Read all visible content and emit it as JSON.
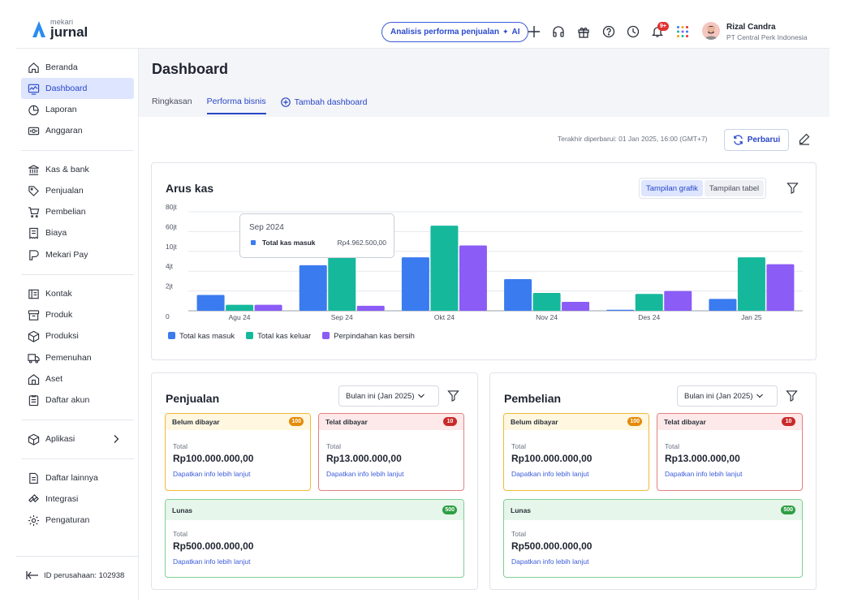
{
  "app": {
    "logo_small": "mekari",
    "logo_big": "jurnal",
    "ai_button": "Analisis performa penjualan",
    "ai_tag": "AI",
    "notif_count": "9+",
    "user_name": "Rizal Candra",
    "user_company": "PT Central Perk Indonesia"
  },
  "sidebar": {
    "items": [
      {
        "label": "Beranda",
        "icon": "home-icon"
      },
      {
        "label": "Dashboard",
        "icon": "dashboard-icon"
      },
      {
        "label": "Laporan",
        "icon": "report-icon"
      },
      {
        "label": "Anggaran",
        "icon": "budget-icon"
      },
      {
        "label": "Kas & bank",
        "icon": "bank-icon"
      },
      {
        "label": "Penjualan",
        "icon": "tag-icon"
      },
      {
        "label": "Pembelian",
        "icon": "cart-icon"
      },
      {
        "label": "Biaya",
        "icon": "receipt-icon"
      },
      {
        "label": "Mekari Pay",
        "icon": "pay-icon"
      },
      {
        "label": "Kontak",
        "icon": "contact-icon"
      },
      {
        "label": "Produk",
        "icon": "product-icon"
      },
      {
        "label": "Produksi",
        "icon": "box-icon"
      },
      {
        "label": "Pemenuhan",
        "icon": "truck-icon"
      },
      {
        "label": "Aset",
        "icon": "asset-icon"
      },
      {
        "label": "Daftar akun",
        "icon": "account-icon"
      },
      {
        "label": "Aplikasi",
        "icon": "cube-icon"
      },
      {
        "label": "Daftar lainnya",
        "icon": "list-icon"
      },
      {
        "label": "Integrasi",
        "icon": "integration-icon"
      },
      {
        "label": "Pengaturan",
        "icon": "settings-icon"
      }
    ],
    "company_id": "ID perusahaan: 102938"
  },
  "header": {
    "title": "Dashboard",
    "tabs": [
      "Ringkasan",
      "Performa bisnis",
      "Tambah dashboard"
    ],
    "updated": "Terakhir diperbarui: 01 Jan 2025, 16:00 (GMT+7)",
    "refresh": "Perbarui"
  },
  "cashflow": {
    "title": "Arus kas",
    "toggle_chart": "Tampilan grafik",
    "toggle_table": "Tampilan tabel",
    "tooltip": {
      "title": "Sep 2024",
      "label": "Total kas masuk",
      "value": "Rp4.962.500,00"
    }
  },
  "chart_data": {
    "type": "bar",
    "title": "Arus kas",
    "categories": [
      "Agu 24",
      "Sep 24",
      "Okt 24",
      "Nov 24",
      "Des 24",
      "Jan 25"
    ],
    "y_ticks": [
      "0",
      "2jt",
      "4jt",
      "10jt",
      "60jt",
      "80jt"
    ],
    "y_tick_values": [
      0,
      1,
      2,
      3,
      4,
      5
    ],
    "ylim": [
      0,
      5
    ],
    "series": [
      {
        "name": "Total kas masuk",
        "color": "#3b7bf0",
        "values": [
          0.8,
          2.3,
          2.7,
          1.6,
          0.05,
          0.6
        ]
      },
      {
        "name": "Total kas keluar",
        "color": "#16b89c",
        "values": [
          0.3,
          2.9,
          4.3,
          0.9,
          0.85,
          2.7
        ]
      },
      {
        "name": "Perpindahan kas bersih",
        "color": "#8b5cf6",
        "values": [
          0.3,
          0.25,
          3.3,
          0.45,
          1.0,
          2.35
        ]
      }
    ]
  },
  "penjualan": {
    "title": "Penjualan",
    "period": "Bulan ini (Jan 2025)",
    "unpaid": {
      "label": "Belum dibayar",
      "count": "100",
      "total_label": "Total",
      "amount": "Rp100.000.000,00",
      "link": "Dapatkan info lebih lanjut"
    },
    "overdue": {
      "label": "Telat dibayar",
      "count": "10",
      "total_label": "Total",
      "amount": "Rp13.000.000,00",
      "link": "Dapatkan info lebih lanjut"
    },
    "paid": {
      "label": "Lunas",
      "count": "500",
      "total_label": "Total",
      "amount": "Rp500.000.000,00",
      "link": "Dapatkan info lebih lanjut"
    }
  },
  "pembelian": {
    "title": "Pembelian",
    "period": "Bulan ini (Jan 2025)",
    "unpaid": {
      "label": "Belum dibayar",
      "count": "100",
      "total_label": "Total",
      "amount": "Rp100.000.000,00",
      "link": "Dapatkan info lebih lanjut"
    },
    "overdue": {
      "label": "Telat dibayar",
      "count": "10",
      "total_label": "Total",
      "amount": "Rp13.000.000,00",
      "link": "Dapatkan info lebih lanjut"
    },
    "paid": {
      "label": "Lunas",
      "count": "500",
      "total_label": "Total",
      "amount": "Rp500.000.000,00",
      "link": "Dapatkan info lebih lanjut"
    }
  }
}
